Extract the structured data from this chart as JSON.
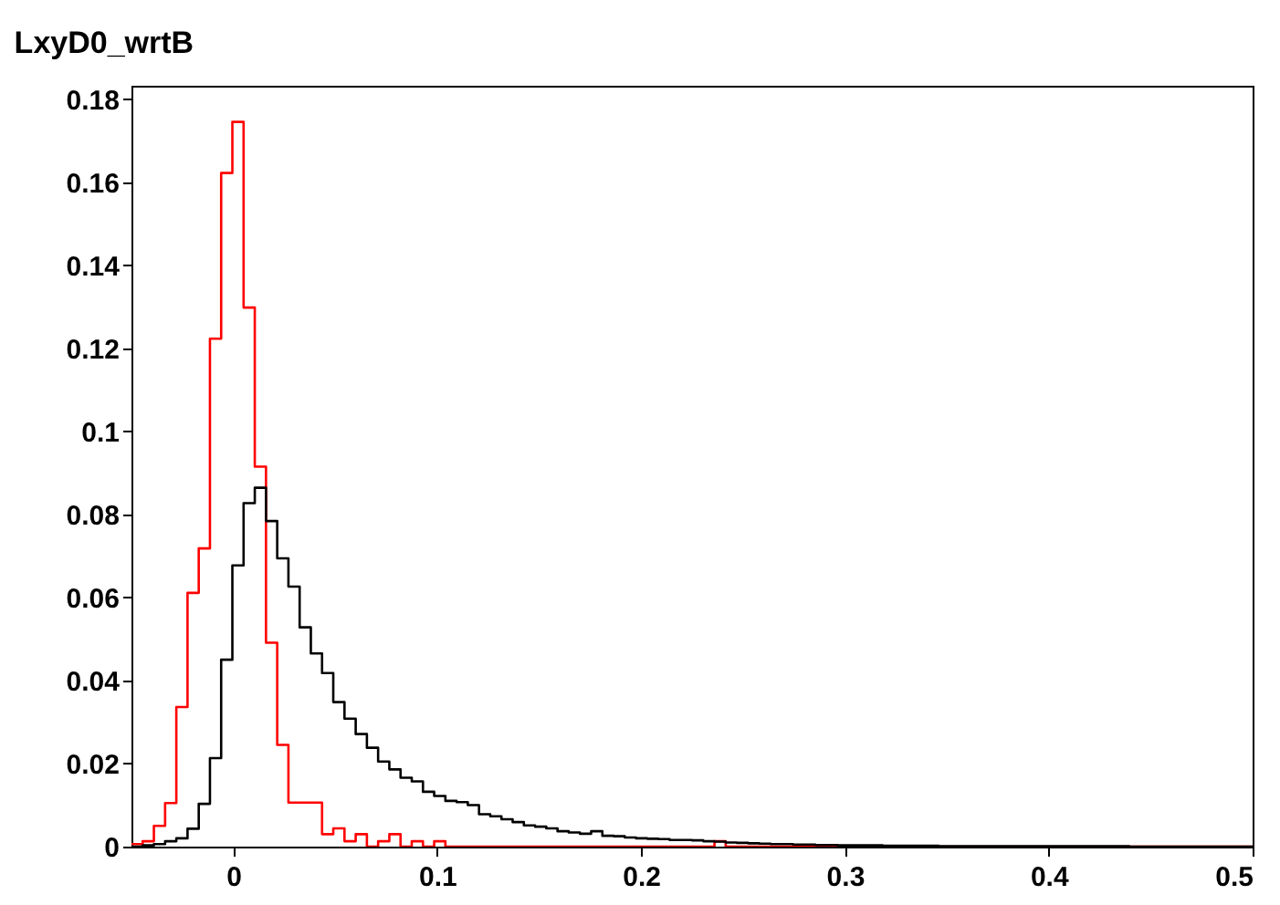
{
  "chart_data": {
    "type": "histogram",
    "title": "LxyD0_wrtB",
    "bins": [
      -0.05,
      -0.0445,
      -0.039,
      -0.0335,
      -0.028,
      -0.0225,
      -0.017,
      -0.0115,
      -0.006,
      -0.0005,
      0.005,
      0.0105,
      0.016,
      0.0215,
      0.027,
      0.0325,
      0.038,
      0.0435,
      0.049,
      0.0545,
      0.06,
      0.0655,
      0.071,
      0.0765,
      0.082,
      0.0875,
      0.093,
      0.0985,
      0.104,
      0.1095,
      0.115,
      0.1205,
      0.126,
      0.1315,
      0.137,
      0.1425,
      0.148,
      0.1535,
      0.159,
      0.1645,
      0.17,
      0.1755,
      0.181,
      0.1865,
      0.192,
      0.1975,
      0.203,
      0.2085,
      0.214,
      0.2195,
      0.225,
      0.2305,
      0.236,
      0.2415,
      0.247,
      0.2525,
      0.258,
      0.2635,
      0.269,
      0.2745,
      0.28,
      0.2855,
      0.291,
      0.2965,
      0.302,
      0.3075,
      0.313,
      0.3185,
      0.324,
      0.3295,
      0.335,
      0.3405,
      0.346,
      0.3515,
      0.357,
      0.3625,
      0.368,
      0.3735,
      0.379,
      0.3845,
      0.39,
      0.3955,
      0.401,
      0.4065,
      0.412,
      0.4175,
      0.423,
      0.4285,
      0.434,
      0.4395,
      0.445,
      0.4505,
      0.456,
      0.4615,
      0.467,
      0.4725,
      0.478,
      0.4835,
      0.489,
      0.4945,
      0.5
    ],
    "series": [
      {
        "color": "#ff0000",
        "values": [
          0.0006,
          0.0013,
          0.005,
          0.0105,
          0.0336,
          0.0611,
          0.0718,
          0.1223,
          0.1622,
          0.1745,
          0.1298,
          0.0915,
          0.0491,
          0.0245,
          0.0106,
          0.0106,
          0.0106,
          0.003,
          0.0044,
          0.0013,
          0.003,
          0,
          0.0013,
          0.003,
          0,
          0.0013,
          0,
          0.0013,
          0,
          0,
          0,
          0,
          0,
          0,
          0,
          0,
          0,
          0,
          0,
          0,
          0,
          0,
          0,
          0,
          0,
          0,
          0,
          0,
          0,
          0,
          0,
          0,
          0.0013,
          0,
          0,
          0,
          0,
          0,
          0,
          0,
          0,
          0,
          0,
          0,
          0,
          0,
          0,
          0,
          0,
          0,
          0,
          0,
          0,
          0,
          0,
          0,
          0,
          0,
          0,
          0,
          0,
          0,
          0,
          0,
          0,
          0,
          0,
          0,
          0,
          0,
          0,
          0,
          0,
          0,
          0,
          0,
          0,
          0,
          0,
          0
        ]
      },
      {
        "color": "#000000",
        "values": [
          0,
          0.0003,
          0.0006,
          0.0013,
          0.002,
          0.0043,
          0.0103,
          0.0213,
          0.045,
          0.0677,
          0.0827,
          0.0864,
          0.0784,
          0.0694,
          0.0626,
          0.0528,
          0.0465,
          0.0418,
          0.0348,
          0.0308,
          0.0271,
          0.0238,
          0.0205,
          0.0186,
          0.0166,
          0.0157,
          0.0132,
          0.0122,
          0.011,
          0.0107,
          0.01,
          0.0078,
          0.0073,
          0.0066,
          0.0059,
          0.0051,
          0.0048,
          0.0044,
          0.0037,
          0.0034,
          0.0031,
          0.0037,
          0.0026,
          0.0025,
          0.0022,
          0.002,
          0.0019,
          0.0018,
          0.0016,
          0.0016,
          0.0015,
          0.0013,
          0.0012,
          0.001,
          0.0009,
          0.0008,
          0.0007,
          0.0006,
          0.0006,
          0.0005,
          0.0005,
          0.0004,
          0.0004,
          0.0003,
          0.0003,
          0.0003,
          0.0003,
          0.0002,
          0.0002,
          0.0002,
          0.0002,
          0.0002,
          0.0001,
          0.0001,
          0.0001,
          0.0001,
          0.0001,
          0.0001,
          0.0001,
          0.0001,
          0.0001,
          0.0001,
          0.0001,
          0.0001,
          0.0001,
          0.0001,
          0.0001,
          0.0001,
          0.0001,
          0,
          0,
          0,
          0,
          0,
          0,
          0,
          0,
          0,
          0,
          0
        ]
      }
    ],
    "xlim": [
      -0.05,
      0.5
    ],
    "xticks": [
      0,
      0.1,
      0.2,
      0.3,
      0.4,
      0.5
    ],
    "ylim": [
      0,
      0.1832
    ],
    "yticks": [
      0,
      0.02,
      0.04,
      0.06,
      0.08,
      0.1,
      0.12,
      0.14,
      0.16,
      0.18
    ],
    "grid": false,
    "legend": false
  }
}
